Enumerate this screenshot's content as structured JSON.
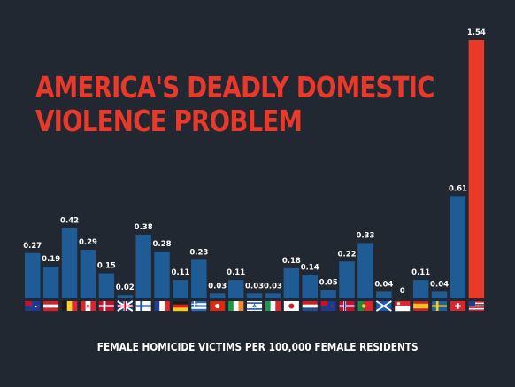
{
  "chart_data": {
    "type": "bar",
    "title_line1": "AMERICA'S DEADLY DOMESTIC",
    "title_line2": "VIOLENCE PROBLEM",
    "xlabel": "FEMALE HOMICIDE VICTIMS PER 100,000 FEMALE RESIDENTS",
    "categories": [
      "flag-au",
      "flag-at",
      "flag-be",
      "flag-ca",
      "flag-dk",
      "flag-gb",
      "flag-fi",
      "flag-fr",
      "flag-de",
      "flag-gr",
      "flag-hk",
      "flag-ie",
      "flag-il",
      "flag-it",
      "flag-jp",
      "flag-nl",
      "flag-nz",
      "flag-no",
      "flag-pt",
      "flag-scot",
      "flag-sg",
      "flag-es",
      "flag-se",
      "flag-ch",
      "flag-us"
    ],
    "values": [
      0.27,
      0.19,
      0.42,
      0.29,
      0.15,
      0.02,
      0.38,
      0.28,
      0.11,
      0.23,
      0.03,
      0.11,
      0.03,
      0.03,
      0.18,
      0.14,
      0.05,
      0.22,
      0.33,
      0.04,
      0,
      0.11,
      0.04,
      0.61,
      1.54
    ],
    "value_labels": [
      "0.27",
      "0.19",
      "0.42",
      "0.29",
      "0.15",
      "0.02",
      "0.38",
      "0.28",
      "0.11",
      "0.23",
      "0.03",
      "0.11",
      "0.03",
      "0.03",
      "0.18",
      "0.14",
      "0.05",
      "0.22",
      "0.33",
      "0.04",
      "0",
      "0.11",
      "0.04",
      "0.61",
      "1.54"
    ],
    "ylim": [
      0,
      1.6
    ],
    "colors": {
      "bar": "#1f5b94",
      "highlight": "#e8392b",
      "background": "#222831",
      "label": "#ffffff"
    },
    "highlight_index": 24
  }
}
